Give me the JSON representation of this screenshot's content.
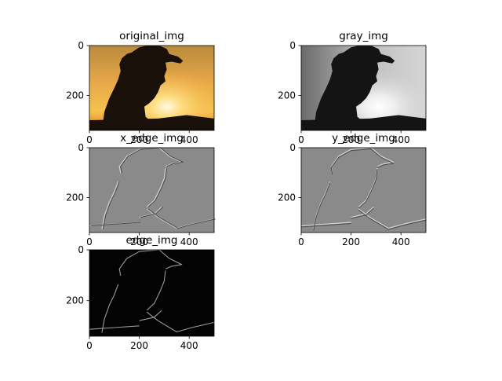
{
  "chart_data": [
    {
      "type": "image",
      "title": "original_img",
      "x_ticks": [
        0,
        200,
        400
      ],
      "y_ticks": [
        0,
        200
      ],
      "xlim": [
        0,
        500
      ],
      "ylim": [
        0,
        340
      ],
      "content": "sunset-silhouette-color"
    },
    {
      "type": "image",
      "title": "gray_img",
      "x_ticks": [
        0,
        200,
        400
      ],
      "y_ticks": [
        0,
        200
      ],
      "xlim": [
        0,
        500
      ],
      "ylim": [
        0,
        340
      ],
      "content": "sunset-silhouette-gray"
    },
    {
      "type": "image",
      "title": "x_edge_img",
      "x_ticks": [
        0,
        200,
        400
      ],
      "y_ticks": [
        0,
        200
      ],
      "xlim": [
        0,
        500
      ],
      "ylim": [
        0,
        340
      ],
      "content": "sobel-x-edges"
    },
    {
      "type": "image",
      "title": "y_edge_img",
      "x_ticks": [
        0,
        200,
        400
      ],
      "y_ticks": [
        0,
        200
      ],
      "xlim": [
        0,
        500
      ],
      "ylim": [
        0,
        340
      ],
      "content": "sobel-y-edges"
    },
    {
      "type": "image",
      "title": "edge_img",
      "x_ticks": [
        0,
        200,
        400
      ],
      "y_ticks": [
        0,
        200
      ],
      "xlim": [
        0,
        500
      ],
      "ylim": [
        0,
        340
      ],
      "content": "edge-magnitude"
    }
  ]
}
